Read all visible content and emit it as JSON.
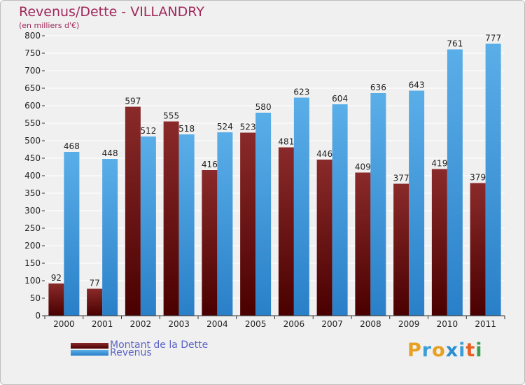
{
  "header": {
    "title": "Revenus/Dette - VILLANDRY",
    "subtitle": "(en milliers d'€)"
  },
  "legend": {
    "items": [
      {
        "label": "Montant de la Dette",
        "color": "#7a1212"
      },
      {
        "label": "Revenus",
        "color": "#4aa3e6"
      }
    ]
  },
  "logo": {
    "text": "Proxiti",
    "colors": [
      "#e8a020",
      "#3a9fd8",
      "#e8a020",
      "#2a8fd0",
      "#3a9fd8",
      "#e86020",
      "#3aa050"
    ]
  },
  "colors": {
    "background": "#f0f0f0",
    "grid": "#ffffff",
    "dette_top": "#8a2a2a",
    "dette_bottom": "#4a0000",
    "revenus_top": "#5aaee8",
    "revenus_bottom": "#2a80c8"
  },
  "chart_data": {
    "type": "bar",
    "title": "Revenus/Dette - VILLANDRY",
    "subtitle": "(en milliers d'€)",
    "categories": [
      "2000",
      "2001",
      "2002",
      "2003",
      "2004",
      "2005",
      "2006",
      "2007",
      "2008",
      "2009",
      "2010",
      "2011"
    ],
    "series": [
      {
        "name": "Montant de la Dette",
        "values": [
          92,
          77,
          597,
          555,
          416,
          523,
          481,
          446,
          409,
          377,
          419,
          379
        ]
      },
      {
        "name": "Revenus",
        "values": [
          468,
          448,
          512,
          518,
          524,
          580,
          623,
          604,
          636,
          643,
          761,
          777
        ]
      }
    ],
    "ylim": [
      0,
      800
    ],
    "yticks": [
      0,
      50,
      100,
      150,
      200,
      250,
      300,
      350,
      400,
      450,
      500,
      550,
      600,
      650,
      700,
      750,
      800
    ],
    "grid": true,
    "legend_position": "bottom-left"
  }
}
